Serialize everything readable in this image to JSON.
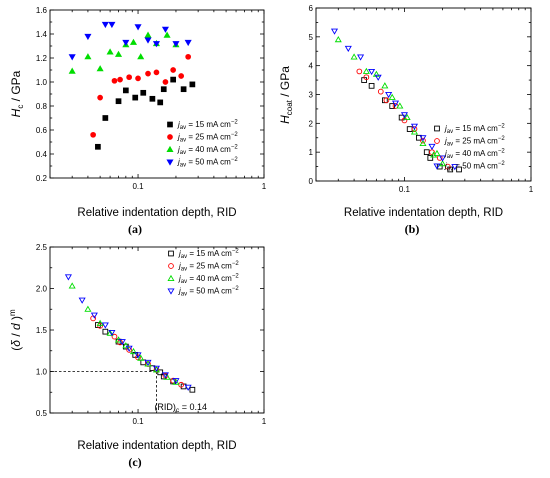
{
  "chart_data": [
    {
      "id": "a",
      "type": "scatter",
      "caption": "(a)",
      "xlabel": "Relative indentation depth, RID",
      "ylabel": "H_c / GPa",
      "ylabel_main": "H",
      "ylabel_sub": "c",
      "ylabel_tail": " / GPa",
      "xscale": "log",
      "xlim": [
        0.02,
        1
      ],
      "xticks": [
        0.1,
        1
      ],
      "xtick_labels": [
        "0.1",
        "1"
      ],
      "ylim": [
        0.2,
        1.6
      ],
      "yticks": [
        0.2,
        0.4,
        0.6,
        0.8,
        1.0,
        1.2,
        1.4,
        1.6
      ],
      "ytick_labels": [
        "0.2",
        "0.4",
        "0.6",
        "0.8",
        "1.0",
        "1.2",
        "1.4",
        "1.6"
      ],
      "legend_position": "bottom-right",
      "series": [
        {
          "name": "j_av = 15 mA cm^-2",
          "marker": "square",
          "fill": "#000000",
          "stroke": "#000000",
          "filled": true,
          "x": [
            0.048,
            0.055,
            0.07,
            0.08,
            0.095,
            0.11,
            0.13,
            0.15,
            0.16,
            0.19,
            0.23,
            0.27
          ],
          "y": [
            0.46,
            0.7,
            0.84,
            0.93,
            0.87,
            0.91,
            0.86,
            0.83,
            0.94,
            1.02,
            0.94,
            0.98
          ]
        },
        {
          "name": "j_av = 25 mA cm^-2",
          "marker": "circle",
          "fill": "#ff0000",
          "stroke": "#ff0000",
          "filled": true,
          "x": [
            0.044,
            0.05,
            0.065,
            0.072,
            0.085,
            0.1,
            0.12,
            0.14,
            0.165,
            0.19,
            0.22,
            0.25
          ],
          "y": [
            0.56,
            0.87,
            1.01,
            1.02,
            1.04,
            1.03,
            1.07,
            1.08,
            1.0,
            1.1,
            1.05,
            1.21
          ]
        },
        {
          "name": "j_av = 40 mA cm^-2",
          "marker": "triangle-up",
          "fill": "#00dd00",
          "stroke": "#00dd00",
          "filled": true,
          "x": [
            0.03,
            0.04,
            0.05,
            0.06,
            0.07,
            0.08,
            0.092,
            0.105,
            0.12,
            0.14,
            0.17,
            0.2
          ],
          "y": [
            1.09,
            1.21,
            1.11,
            1.25,
            1.23,
            1.31,
            1.33,
            1.21,
            1.39,
            1.32,
            1.39,
            1.31
          ]
        },
        {
          "name": "j_av = 50 mA cm^-2",
          "marker": "triangle-down",
          "fill": "#0000ff",
          "stroke": "#0000ff",
          "filled": true,
          "x": [
            0.03,
            0.04,
            0.055,
            0.062,
            0.08,
            0.1,
            0.12,
            0.14,
            0.165,
            0.2,
            0.25
          ],
          "y": [
            1.21,
            1.38,
            1.48,
            1.48,
            1.33,
            1.46,
            1.35,
            1.32,
            1.44,
            1.32,
            1.33
          ]
        }
      ]
    },
    {
      "id": "b",
      "type": "scatter",
      "caption": "(b)",
      "xlabel": "Relative indentation depth, RID",
      "ylabel": "H_coat / GPa",
      "ylabel_main": "H",
      "ylabel_sub": "coat",
      "ylabel_tail": " / GPa",
      "xscale": "log",
      "xlim": [
        0.02,
        1
      ],
      "xticks": [
        0.1,
        1
      ],
      "xtick_labels": [
        "0.1",
        "1"
      ],
      "ylim": [
        0,
        6
      ],
      "yticks": [
        0,
        1,
        2,
        3,
        4,
        5,
        6
      ],
      "ytick_labels": [
        "0",
        "1",
        "2",
        "3",
        "4",
        "5",
        "6"
      ],
      "legend_position": "bottom-right",
      "series": [
        {
          "name": "j_av = 15 mA cm^-2",
          "marker": "square",
          "fill": "none",
          "stroke": "#000000",
          "filled": false,
          "x": [
            0.048,
            0.055,
            0.07,
            0.08,
            0.095,
            0.11,
            0.13,
            0.15,
            0.16,
            0.19,
            0.23,
            0.27
          ],
          "y": [
            3.5,
            3.3,
            2.8,
            2.6,
            2.2,
            1.8,
            1.5,
            1.0,
            0.8,
            0.5,
            0.4,
            0.4
          ]
        },
        {
          "name": "j_av = 25 mA cm^-2",
          "marker": "circle",
          "fill": "none",
          "stroke": "#ff0000",
          "filled": false,
          "x": [
            0.044,
            0.05,
            0.065,
            0.072,
            0.085,
            0.1,
            0.12,
            0.14,
            0.165,
            0.19,
            0.22
          ],
          "y": [
            3.8,
            3.6,
            3.1,
            2.8,
            2.6,
            2.1,
            1.8,
            1.4,
            1.0,
            0.8,
            0.5
          ]
        },
        {
          "name": "j_av = 40 mA cm^-2",
          "marker": "triangle-up",
          "fill": "none",
          "stroke": "#00dd00",
          "filled": false,
          "x": [
            0.03,
            0.04,
            0.05,
            0.06,
            0.07,
            0.08,
            0.092,
            0.105,
            0.12,
            0.14,
            0.17,
            0.2
          ],
          "y": [
            4.9,
            4.3,
            3.8,
            3.7,
            3.3,
            2.9,
            2.6,
            2.2,
            1.7,
            1.3,
            0.9,
            0.6
          ]
        },
        {
          "name": "j_av = 50 mA cm^-2",
          "marker": "triangle-down",
          "fill": "none",
          "stroke": "#0000ff",
          "filled": false,
          "x": [
            0.028,
            0.036,
            0.045,
            0.055,
            0.062,
            0.075,
            0.085,
            0.1,
            0.12,
            0.14,
            0.165,
            0.2,
            0.25
          ],
          "y": [
            5.2,
            4.6,
            4.3,
            3.8,
            3.6,
            3.0,
            2.7,
            2.3,
            1.9,
            1.5,
            1.2,
            0.8,
            0.5
          ]
        }
      ]
    },
    {
      "id": "c",
      "type": "scatter",
      "caption": "(c)",
      "xlabel": "Relative indentation depth, RID",
      "ylabel": "(δ / d)^m",
      "xscale": "log",
      "xlim": [
        0.02,
        1
      ],
      "xticks": [
        0.1,
        1
      ],
      "xtick_labels": [
        "0.1",
        "1"
      ],
      "ylim": [
        0.5,
        2.5
      ],
      "yticks": [
        0.5,
        1.0,
        1.5,
        2.0,
        2.5
      ],
      "ytick_labels": [
        "0.5",
        "1.0",
        "1.5",
        "2.0",
        "2.5"
      ],
      "legend_position": "top-right",
      "annotation": {
        "text": "(RID)c = 0.14",
        "main": "(RID)",
        "sub": "c",
        "tail": " = 0.14",
        "x": 0.14,
        "y": 1.0
      },
      "series": [
        {
          "name": "j_av = 15 mA cm^-2",
          "marker": "square",
          "fill": "none",
          "stroke": "#000000",
          "filled": false,
          "x": [
            0.048,
            0.055,
            0.07,
            0.08,
            0.095,
            0.11,
            0.13,
            0.15,
            0.16,
            0.19,
            0.23,
            0.27
          ],
          "y": [
            1.56,
            1.48,
            1.36,
            1.3,
            1.2,
            1.11,
            1.04,
            0.99,
            0.94,
            0.88,
            0.82,
            0.78
          ]
        },
        {
          "name": "j_av = 25 mA cm^-2",
          "marker": "circle",
          "fill": "none",
          "stroke": "#ff0000",
          "filled": false,
          "x": [
            0.044,
            0.05,
            0.065,
            0.072,
            0.085,
            0.1,
            0.12,
            0.14,
            0.165,
            0.19,
            0.22
          ],
          "y": [
            1.64,
            1.55,
            1.42,
            1.35,
            1.26,
            1.17,
            1.09,
            1.02,
            0.95,
            0.89,
            0.84
          ]
        },
        {
          "name": "j_av = 40 mA cm^-2",
          "marker": "triangle-up",
          "fill": "none",
          "stroke": "#00dd00",
          "filled": false,
          "x": [
            0.03,
            0.04,
            0.05,
            0.06,
            0.07,
            0.08,
            0.092,
            0.105,
            0.12,
            0.14,
            0.17,
            0.2
          ],
          "y": [
            2.03,
            1.75,
            1.58,
            1.46,
            1.38,
            1.31,
            1.24,
            1.16,
            1.09,
            1.02,
            0.93,
            0.87
          ]
        },
        {
          "name": "j_av = 50 mA cm^-2",
          "marker": "triangle-down",
          "fill": "none",
          "stroke": "#0000ff",
          "filled": false,
          "x": [
            0.028,
            0.036,
            0.045,
            0.055,
            0.062,
            0.075,
            0.085,
            0.1,
            0.12,
            0.14,
            0.165,
            0.2,
            0.25
          ],
          "y": [
            2.14,
            1.86,
            1.68,
            1.56,
            1.47,
            1.36,
            1.28,
            1.2,
            1.11,
            1.04,
            0.96,
            0.89,
            0.81
          ]
        }
      ]
    }
  ]
}
